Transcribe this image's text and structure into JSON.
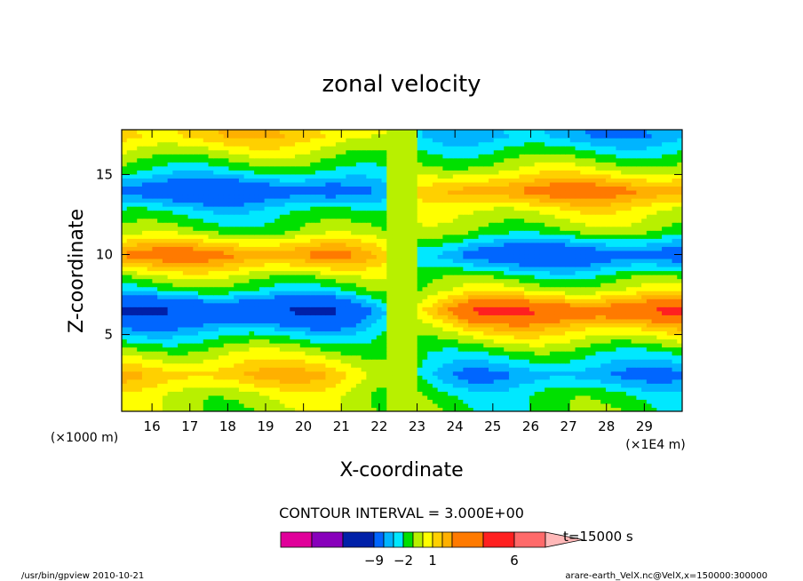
{
  "chart_data": {
    "type": "heatmap",
    "title": "zonal velocity",
    "xlabel": "X-coordinate",
    "ylabel": "Z-coordinate",
    "x_unit_left": "(×1000 m)",
    "x_unit_right": "(×1E4 m)",
    "xlim": [
      15.2,
      30.0
    ],
    "ylim": [
      0.2,
      17.8
    ],
    "x_ticks": [
      16,
      17,
      18,
      19,
      20,
      21,
      22,
      23,
      24,
      25,
      26,
      27,
      28,
      29
    ],
    "y_ticks": [
      5,
      10,
      15
    ],
    "contour_interval_text": "CONTOUR INTERVAL = 3.000E+00",
    "time_label": "t=15000 s",
    "footer_left": "/usr/bin/gpview  2010-10-21",
    "footer_right": "arare-earth_VelX.nc@VelX,x=150000:300000",
    "colorbar": {
      "colors": [
        "#e0009a",
        "#8800bb",
        "#0020a8",
        "#0066ff",
        "#00b4ff",
        "#00e8ff",
        "#00e000",
        "#b8f000",
        "#ffff00",
        "#ffd000",
        "#ffb000",
        "#ff7a00",
        "#ff2020",
        "#ff6a6a",
        "#ffb8b8"
      ],
      "tick_labels": [
        "−9",
        "−2",
        "1",
        "6"
      ],
      "tick_level_index": [
        2,
        5,
        8,
        12
      ]
    },
    "bands": [
      {
        "z": 17.4,
        "v": 2.6
      },
      {
        "z": 16.5,
        "v": 1.0
      },
      {
        "z": 15.3,
        "v": -1.0
      },
      {
        "z": 14.0,
        "v": -4.5
      },
      {
        "z": 12.8,
        "v": -1.5
      },
      {
        "z": 11.5,
        "v": 0.0
      },
      {
        "z": 10.0,
        "v": 4.5
      },
      {
        "z": 8.6,
        "v": 0.5
      },
      {
        "z": 7.8,
        "v": -1.0
      },
      {
        "z": 6.5,
        "v": -6.0
      },
      {
        "z": 5.2,
        "v": -2.0
      },
      {
        "z": 4.0,
        "v": 0.5
      },
      {
        "z": 2.5,
        "v": 3.0
      },
      {
        "z": 1.2,
        "v": 0.8
      },
      {
        "z": 0.3,
        "v": 0.5
      }
    ]
  }
}
